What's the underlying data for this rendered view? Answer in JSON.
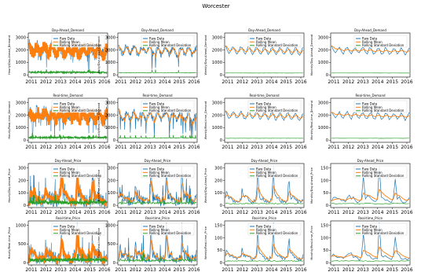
{
  "figure_title": "Worcester",
  "colors": {
    "raw": "#1f77b4",
    "mean": "#ff7f0e",
    "std": "#2ca02c",
    "frame": "#000000",
    "background": "#ffffff"
  },
  "x_ticks": [
    "2011",
    "2012",
    "2013",
    "2014",
    "2015",
    "2016"
  ],
  "legend": [
    "Raw Data",
    "Rolling Mean",
    "Rolling Standard Deviation"
  ],
  "row_y_ticks": [
    [
      "0",
      "1000",
      "2000",
      "3000"
    ],
    [
      "0",
      "1000",
      "2000",
      "3000"
    ],
    [
      "0",
      "100",
      "200",
      "300"
    ],
    [
      "0",
      "500",
      "1000"
    ]
  ],
  "monthly_price_y_ticks": [
    "0",
    "50",
    "100",
    "150"
  ],
  "chart_data": [
    {
      "type": "line",
      "row": 0,
      "col": 0,
      "title": "Day-Ahead_Demand",
      "ylabel": "Hourly/Day-Ahead_Demand",
      "series": [
        {
          "name": "Raw Data"
        },
        {
          "name": "Rolling Mean"
        },
        {
          "name": "Rolling Standard Deviation"
        }
      ]
    },
    {
      "type": "line",
      "row": 0,
      "col": 1,
      "title": "Day-Ahead_Demand",
      "ylabel": "Daily/Day-Ahead_Demand",
      "series": [
        {
          "name": "Raw Data"
        },
        {
          "name": "Rolling Mean"
        },
        {
          "name": "Rolling Standard Deviation"
        }
      ]
    },
    {
      "type": "line",
      "row": 0,
      "col": 2,
      "title": "Day-Ahead_Demand",
      "ylabel": "Weekly/Day-Ahead_Demand",
      "series": [
        {
          "name": "Raw Data"
        },
        {
          "name": "Rolling Mean"
        },
        {
          "name": "Rolling Standard Deviation"
        }
      ]
    },
    {
      "type": "line",
      "row": 0,
      "col": 3,
      "title": "Day-Ahead_Demand",
      "ylabel": "Monthly/Day-Ahead_Demand",
      "series": [
        {
          "name": "Raw Data"
        },
        {
          "name": "Rolling Mean"
        },
        {
          "name": "Rolling Standard Deviation"
        }
      ]
    },
    {
      "type": "line",
      "row": 1,
      "col": 0,
      "title": "Real-time_Demand",
      "ylabel": "Hourly/Real-time_Demand",
      "series": [
        {
          "name": "Raw Data"
        },
        {
          "name": "Rolling Mean"
        },
        {
          "name": "Rolling Standard Deviation"
        }
      ]
    },
    {
      "type": "line",
      "row": 1,
      "col": 1,
      "title": "Real-time_Demand",
      "ylabel": "Daily/Real-time_Demand",
      "series": [
        {
          "name": "Raw Data"
        },
        {
          "name": "Rolling Mean"
        },
        {
          "name": "Rolling Standard Deviation"
        }
      ]
    },
    {
      "type": "line",
      "row": 1,
      "col": 2,
      "title": "Real-time_Demand",
      "ylabel": "Weekly/Real-time_Demand",
      "series": [
        {
          "name": "Raw Data"
        },
        {
          "name": "Rolling Mean"
        },
        {
          "name": "Rolling Standard Deviation"
        }
      ]
    },
    {
      "type": "line",
      "row": 1,
      "col": 3,
      "title": "Real-time_Demand",
      "ylabel": "Monthly/Real-time_Demand",
      "series": [
        {
          "name": "Raw Data"
        },
        {
          "name": "Rolling Mean"
        },
        {
          "name": "Rolling Standard Deviation"
        }
      ]
    },
    {
      "type": "line",
      "row": 2,
      "col": 0,
      "title": "Day-Ahead_Price",
      "ylabel": "Hourly/Day-Ahead_Price",
      "series": [
        {
          "name": "Raw Data"
        },
        {
          "name": "Rolling Mean"
        },
        {
          "name": "Rolling Standard Deviation"
        }
      ]
    },
    {
      "type": "line",
      "row": 2,
      "col": 1,
      "title": "Day-Ahead_Price",
      "ylabel": "Daily/Day-Ahead_Price",
      "series": [
        {
          "name": "Raw Data"
        },
        {
          "name": "Rolling Mean"
        },
        {
          "name": "Rolling Standard Deviation"
        }
      ]
    },
    {
      "type": "line",
      "row": 2,
      "col": 2,
      "title": "Day-Ahead_Price",
      "ylabel": "Weekly/Day-Ahead_Price",
      "series": [
        {
          "name": "Raw Data"
        },
        {
          "name": "Rolling Mean"
        },
        {
          "name": "Rolling Standard Deviation"
        }
      ]
    },
    {
      "type": "line",
      "row": 2,
      "col": 3,
      "title": "Day-Ahead_Price",
      "ylabel": "Monthly/Day-Ahead_Price",
      "series": [
        {
          "name": "Raw Data"
        },
        {
          "name": "Rolling Mean"
        },
        {
          "name": "Rolling Standard Deviation"
        }
      ]
    },
    {
      "type": "line",
      "row": 3,
      "col": 0,
      "title": "Real-time_Price",
      "ylabel": "Hourly/Real-time_Price",
      "series": [
        {
          "name": "Raw Data"
        },
        {
          "name": "Rolling Mean"
        },
        {
          "name": "Rolling Standard Deviation"
        }
      ]
    },
    {
      "type": "line",
      "row": 3,
      "col": 1,
      "title": "Real-time_Price",
      "ylabel": "Daily/Real-time_Price",
      "series": [
        {
          "name": "Raw Data"
        },
        {
          "name": "Rolling Mean"
        },
        {
          "name": "Rolling Standard Deviation"
        }
      ]
    },
    {
      "type": "line",
      "row": 3,
      "col": 2,
      "title": "Real-time_Price",
      "ylabel": "Weekly/Real-time_Price",
      "series": [
        {
          "name": "Raw Data"
        },
        {
          "name": "Rolling Mean"
        },
        {
          "name": "Rolling Standard Deviation"
        }
      ]
    },
    {
      "type": "line",
      "row": 3,
      "col": 3,
      "title": "Real-time_Price",
      "ylabel": "Monthly/Real-time_Price",
      "series": [
        {
          "name": "Raw Data"
        },
        {
          "name": "Rolling Mean"
        },
        {
          "name": "Rolling Standard Deviation"
        }
      ]
    }
  ]
}
